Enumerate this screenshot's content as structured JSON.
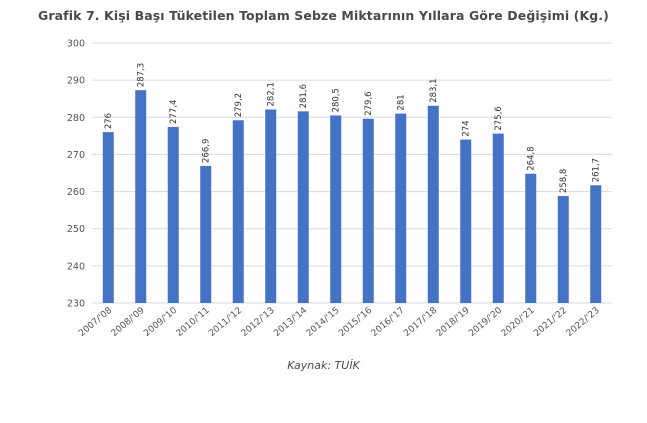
{
  "chart_data": {
    "type": "bar",
    "title": "Grafik 7. Kişi Başı Tüketilen Toplam Sebze Miktarının Yıllara Göre Değişimi (Kg.)",
    "xlabel": "",
    "ylabel": "",
    "categories": [
      "2007/'08",
      "2008/'09",
      "2009/'10",
      "2010/'11",
      "2011/'12",
      "2012/'13",
      "2013/'14",
      "2014/'15",
      "2015/'16",
      "2016/'17",
      "2017/'18",
      "2018/'19",
      "2019/'20",
      "2020/'21",
      "2021/'22",
      "2022/'23"
    ],
    "values": [
      276,
      287.3,
      277.4,
      266.9,
      279.2,
      282.1,
      281.6,
      280.5,
      279.6,
      281,
      283.1,
      274,
      275.6,
      264.8,
      258.8,
      261.7
    ],
    "value_labels": [
      "276",
      "287,3",
      "277,4",
      "266,9",
      "279,2",
      "282,1",
      "281,6",
      "280,5",
      "279,6",
      "281",
      "283,1",
      "274",
      "275,6",
      "264,8",
      "258,8",
      "261,7"
    ],
    "ylim": [
      230,
      300
    ],
    "yticks": [
      "230",
      "240",
      "250",
      "260",
      "270",
      "280",
      "290",
      "300"
    ],
    "grid": true,
    "bar_color": "#4472c4",
    "source": "Kaynak: TUİK"
  }
}
